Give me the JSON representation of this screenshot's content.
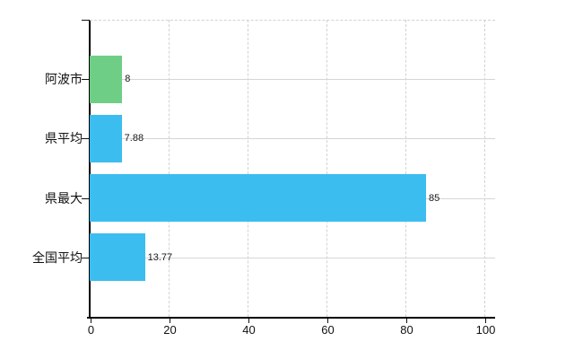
{
  "chart_data": {
    "type": "bar",
    "orientation": "horizontal",
    "title": "",
    "categories": [
      "阿波市",
      "県平均",
      "県最大",
      "全国平均"
    ],
    "values": [
      8,
      7.88,
      85,
      13.77
    ],
    "value_labels": [
      "8",
      "7.88",
      "85",
      "13.77"
    ],
    "bar_colors": [
      "#6FCE85",
      "#3BBDEF",
      "#3BBDEF",
      "#3BBDEF"
    ],
    "xlim": [
      0,
      100
    ],
    "x_ticks": [
      0,
      20,
      40,
      60,
      80,
      100
    ],
    "grid": true,
    "legend": "none",
    "background_color": "#ffffff",
    "gridline_color": "#d4d4d4",
    "axis_color": "#000000"
  }
}
